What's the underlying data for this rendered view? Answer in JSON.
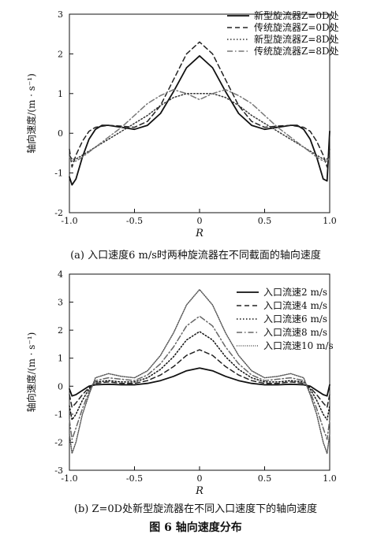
{
  "figure_caption": "图 6   轴向速度分布",
  "chart_data": [
    {
      "type": "line",
      "caption": "(a) 入口速度6 m/s时两种旋流器在不同截面的轴向速度",
      "xlabel": "R",
      "ylabel": "轴向速度/(m · s⁻¹)",
      "xlim": [
        -1.0,
        1.0
      ],
      "ylim": [
        -2,
        3
      ],
      "xticks": [
        "-1.0",
        "-0.5",
        "0",
        "0.5",
        "1.0"
      ],
      "yticks": [
        "-2",
        "-1",
        "0",
        "1",
        "2",
        "3"
      ],
      "legend_position": "top-right",
      "series": [
        {
          "name": "新型旋流器Z=0D处",
          "style": "solid",
          "color": "#111111",
          "x": [
            -1.0,
            -0.98,
            -0.95,
            -0.9,
            -0.85,
            -0.8,
            -0.75,
            -0.7,
            -0.6,
            -0.5,
            -0.4,
            -0.3,
            -0.2,
            -0.1,
            0,
            0.1,
            0.2,
            0.3,
            0.4,
            0.5,
            0.6,
            0.7,
            0.75,
            0.8,
            0.85,
            0.9,
            0.95,
            0.98,
            1.0
          ],
          "y": [
            -1.1,
            -1.3,
            -1.15,
            -0.6,
            -0.15,
            0.1,
            0.2,
            0.2,
            0.15,
            0.1,
            0.2,
            0.5,
            1.05,
            1.65,
            1.95,
            1.65,
            1.05,
            0.5,
            0.2,
            0.1,
            0.15,
            0.2,
            0.2,
            0.1,
            -0.15,
            -0.6,
            -1.15,
            -1.2,
            0.05
          ]
        },
        {
          "name": "传统旋流器Z=0D处",
          "style": "dashed",
          "color": "#222222",
          "x": [
            -1.0,
            -0.98,
            -0.95,
            -0.9,
            -0.85,
            -0.8,
            -0.7,
            -0.6,
            -0.5,
            -0.4,
            -0.3,
            -0.2,
            -0.1,
            0,
            0.1,
            0.2,
            0.3,
            0.4,
            0.5,
            0.6,
            0.7,
            0.8,
            0.85,
            0.9,
            0.95,
            0.98,
            1.0
          ],
          "y": [
            -0.4,
            -0.85,
            -0.55,
            -0.2,
            0.05,
            0.15,
            0.2,
            0.18,
            0.15,
            0.3,
            0.7,
            1.35,
            2.0,
            2.3,
            2.0,
            1.35,
            0.7,
            0.3,
            0.15,
            0.18,
            0.2,
            0.15,
            0.05,
            -0.2,
            -0.55,
            -0.85,
            -0.4
          ]
        },
        {
          "name": "新型旋流器Z=8D处",
          "style": "dotted",
          "color": "#333333",
          "x": [
            -1.0,
            -0.98,
            -0.95,
            -0.9,
            -0.8,
            -0.7,
            -0.6,
            -0.5,
            -0.4,
            -0.3,
            -0.2,
            -0.1,
            0,
            0.1,
            0.2,
            0.3,
            0.4,
            0.5,
            0.6,
            0.7,
            0.8,
            0.9,
            0.95,
            0.98,
            1.0
          ],
          "y": [
            -0.55,
            -0.65,
            -0.65,
            -0.55,
            -0.35,
            -0.15,
            0.05,
            0.25,
            0.45,
            0.7,
            0.9,
            1.0,
            1.0,
            1.0,
            0.9,
            0.7,
            0.45,
            0.25,
            0.05,
            -0.15,
            -0.35,
            -0.55,
            -0.65,
            -0.65,
            -0.55
          ]
        },
        {
          "name": "传统旋流器Z=8D处",
          "style": "dashdot",
          "color": "#777777",
          "x": [
            -1.0,
            -0.98,
            -0.95,
            -0.9,
            -0.8,
            -0.7,
            -0.6,
            -0.5,
            -0.4,
            -0.3,
            -0.2,
            -0.1,
            0,
            0.1,
            0.2,
            0.3,
            0.4,
            0.5,
            0.6,
            0.7,
            0.8,
            0.9,
            0.95,
            0.98,
            1.0
          ],
          "y": [
            -0.6,
            -0.7,
            -0.7,
            -0.6,
            -0.35,
            -0.1,
            0.15,
            0.45,
            0.75,
            0.95,
            1.1,
            1.0,
            0.85,
            1.0,
            1.1,
            0.95,
            0.75,
            0.45,
            0.15,
            -0.1,
            -0.35,
            -0.6,
            -0.7,
            -0.7,
            -0.6
          ]
        }
      ]
    },
    {
      "type": "line",
      "caption": "(b) Z=0D处新型旋流器在不同入口速度下的轴向速度",
      "xlabel": "R",
      "ylabel": "轴向速度/(m · s⁻¹)",
      "xlim": [
        -1.0,
        1.0
      ],
      "ylim": [
        -3,
        4
      ],
      "xticks": [
        "-1.0",
        "-0.5",
        "0",
        "0.5",
        "1.0"
      ],
      "yticks": [
        "-3",
        "-2",
        "-1",
        "0",
        "1",
        "2",
        "3",
        "4"
      ],
      "legend_position": "top-right",
      "series": [
        {
          "name": "入口流速2 m/s",
          "style": "solid",
          "color": "#111111",
          "x": [
            -1.0,
            -0.98,
            -0.95,
            -0.9,
            -0.85,
            -0.8,
            -0.7,
            -0.6,
            -0.5,
            -0.4,
            -0.3,
            -0.2,
            -0.1,
            0,
            0.1,
            0.2,
            0.3,
            0.4,
            0.5,
            0.6,
            0.7,
            0.8,
            0.85,
            0.9,
            0.95,
            0.98,
            1.0
          ],
          "y": [
            -0.1,
            -0.35,
            -0.3,
            -0.15,
            0.0,
            0.05,
            0.07,
            0.05,
            0.05,
            0.1,
            0.2,
            0.35,
            0.55,
            0.65,
            0.55,
            0.35,
            0.2,
            0.1,
            0.05,
            0.05,
            0.07,
            0.05,
            0.0,
            -0.15,
            -0.3,
            -0.35,
            0.05
          ]
        },
        {
          "name": "入口流速4 m/s",
          "style": "dashed",
          "color": "#222222",
          "x": [
            -1.0,
            -0.98,
            -0.95,
            -0.9,
            -0.85,
            -0.8,
            -0.7,
            -0.6,
            -0.5,
            -0.4,
            -0.3,
            -0.2,
            -0.1,
            0,
            0.1,
            0.2,
            0.3,
            0.4,
            0.5,
            0.6,
            0.7,
            0.8,
            0.85,
            0.9,
            0.95,
            0.98,
            1.0
          ],
          "y": [
            -0.3,
            -0.75,
            -0.6,
            -0.3,
            -0.05,
            0.1,
            0.15,
            0.1,
            0.1,
            0.2,
            0.4,
            0.7,
            1.1,
            1.3,
            1.1,
            0.7,
            0.4,
            0.2,
            0.1,
            0.1,
            0.15,
            0.1,
            -0.05,
            -0.3,
            -0.6,
            -0.75,
            -0.3
          ]
        },
        {
          "name": "入口流速6 m/s",
          "style": "dotted",
          "color": "#111111",
          "x": [
            -1.0,
            -0.98,
            -0.95,
            -0.9,
            -0.85,
            -0.8,
            -0.7,
            -0.6,
            -0.5,
            -0.4,
            -0.3,
            -0.2,
            -0.1,
            0,
            0.1,
            0.2,
            0.3,
            0.4,
            0.5,
            0.6,
            0.7,
            0.8,
            0.85,
            0.9,
            0.95,
            0.98,
            1.0
          ],
          "y": [
            -0.7,
            -1.2,
            -1.0,
            -0.5,
            -0.1,
            0.15,
            0.2,
            0.15,
            0.15,
            0.3,
            0.6,
            1.05,
            1.65,
            1.95,
            1.65,
            1.05,
            0.6,
            0.3,
            0.15,
            0.15,
            0.2,
            0.15,
            -0.1,
            -0.5,
            -1.0,
            -1.2,
            -0.7
          ]
        },
        {
          "name": "入口流速8 m/s",
          "style": "dashdot",
          "color": "#666666",
          "x": [
            -1.0,
            -0.98,
            -0.95,
            -0.9,
            -0.85,
            -0.8,
            -0.7,
            -0.6,
            -0.5,
            -0.4,
            -0.3,
            -0.2,
            -0.1,
            0,
            0.1,
            0.2,
            0.3,
            0.4,
            0.5,
            0.6,
            0.7,
            0.8,
            0.85,
            0.9,
            0.95,
            0.98,
            1.0
          ],
          "y": [
            -1.2,
            -1.9,
            -1.5,
            -0.8,
            -0.2,
            0.2,
            0.3,
            0.25,
            0.2,
            0.4,
            0.8,
            1.4,
            2.15,
            2.5,
            2.15,
            1.4,
            0.8,
            0.4,
            0.2,
            0.25,
            0.3,
            0.2,
            -0.2,
            -0.8,
            -1.5,
            -1.9,
            -1.2
          ]
        },
        {
          "name": "入口流速10 m/s",
          "style": "fine-dotted",
          "color": "#555555",
          "x": [
            -1.0,
            -0.98,
            -0.95,
            -0.9,
            -0.85,
            -0.8,
            -0.7,
            -0.6,
            -0.5,
            -0.4,
            -0.3,
            -0.2,
            -0.1,
            0,
            0.1,
            0.2,
            0.3,
            0.4,
            0.5,
            0.6,
            0.7,
            0.8,
            0.85,
            0.9,
            0.95,
            0.98,
            1.0
          ],
          "y": [
            -1.7,
            -2.4,
            -2.0,
            -1.0,
            -0.3,
            0.3,
            0.45,
            0.35,
            0.3,
            0.55,
            1.1,
            1.9,
            2.9,
            3.45,
            2.9,
            1.9,
            1.1,
            0.55,
            0.3,
            0.35,
            0.45,
            0.3,
            -0.3,
            -1.0,
            -2.0,
            -2.4,
            -1.7
          ]
        }
      ]
    }
  ]
}
